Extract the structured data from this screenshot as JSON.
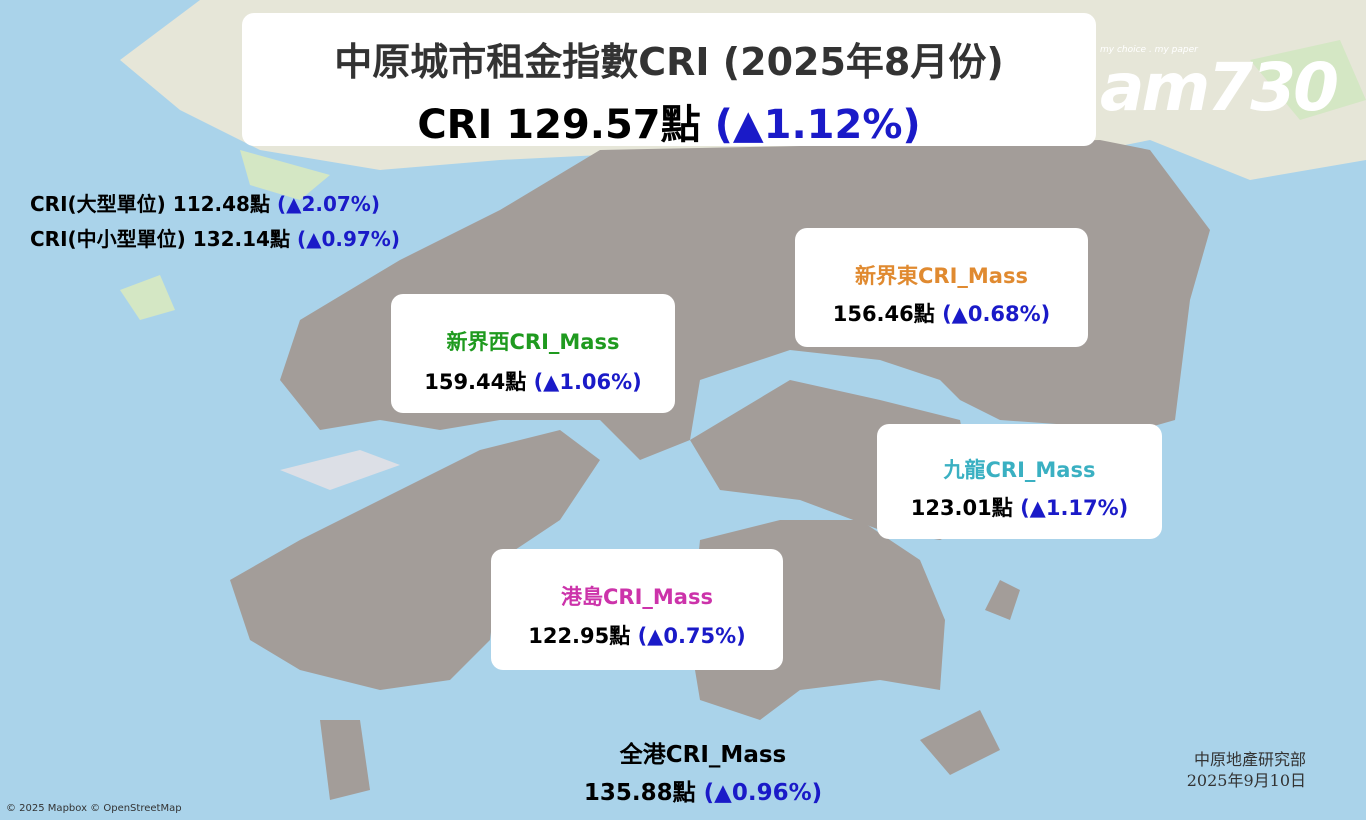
{
  "header": {
    "title": "中原城市租金指數CRI (2025年8月份)",
    "index": "CRI 129.57點",
    "change": "(▲1.12%)"
  },
  "logo": {
    "tagline": "my choice . my paper",
    "name": "am730"
  },
  "summary": [
    {
      "label": "CRI(大型單位)",
      "value": "112.48點",
      "change": "(▲2.07%)"
    },
    {
      "label": "CRI(中小型單位)",
      "value": "132.14點",
      "change": "(▲0.97%)"
    }
  ],
  "regions": [
    {
      "name": "新界西CRI_Mass",
      "value": "159.44點",
      "change": "(▲1.06%)"
    },
    {
      "name": "新界東CRI_Mass",
      "value": "156.46點",
      "change": "(▲0.68%)"
    },
    {
      "name": "九龍CRI_Mass",
      "value": "123.01點",
      "change": "(▲1.17%)"
    },
    {
      "name": "港島CRI_Mass",
      "value": "122.95點",
      "change": "(▲0.75%)"
    }
  ],
  "overall": {
    "name": "全港CRI_Mass",
    "value": "135.88點",
    "change": "(▲0.96%)"
  },
  "footer": {
    "source": "中原地產研究部",
    "date": "2025年9月10日",
    "attribution": "© 2025 Mapbox © OpenStreetMap"
  }
}
